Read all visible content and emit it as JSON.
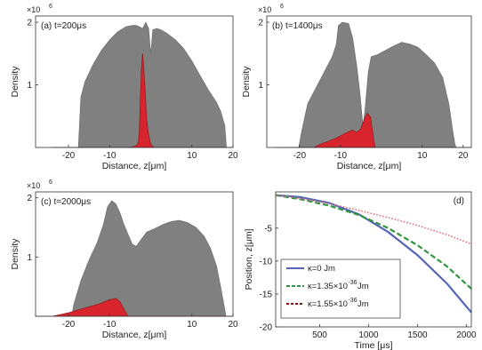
{
  "colors": {
    "gray": "#808080",
    "red": "#d8242c",
    "darkred": "#8c1014",
    "blue": "#5566b8",
    "green": "#2e9640",
    "pink": "#e06c74"
  },
  "chart_data": [
    {
      "type": "area",
      "panel_label": "(a) t=200μs",
      "xlabel": "Distance, z[μm]",
      "ylabel": "Density",
      "exponent": "×10",
      "exponent_power": "6",
      "xlim": [
        -28,
        20
      ],
      "ylim": [
        0,
        2.1
      ],
      "xticks": [
        -20,
        -10,
        10,
        20
      ],
      "yticks": [
        1,
        2
      ],
      "series": [
        {
          "kind": "total",
          "x": [
            -24,
            -17.6,
            -17,
            -16,
            -14,
            -12,
            -10,
            -8,
            -6,
            -4.5,
            -3.5,
            -2.5,
            -2,
            -1.2,
            -0.5,
            0,
            0.5,
            1.5,
            2.5,
            4,
            6,
            8,
            10,
            12,
            14,
            16,
            17,
            18,
            18.4,
            19,
            20
          ],
          "y": [
            0,
            0,
            0.8,
            1.05,
            1.33,
            1.55,
            1.72,
            1.85,
            1.93,
            1.95,
            1.95,
            1.92,
            1.9,
            2.0,
            1.9,
            1.5,
            1.88,
            1.9,
            1.88,
            1.82,
            1.72,
            1.58,
            1.38,
            1.15,
            0.92,
            0.72,
            0.58,
            0.35,
            0,
            0,
            0
          ]
        },
        {
          "kind": "component",
          "x": [
            -24,
            -5,
            -3.5,
            -3,
            -2.8,
            -2.5,
            -2.3,
            -2,
            -1.7,
            -1.5,
            -1.2,
            -1,
            -0.5,
            0,
            0.8,
            3,
            20
          ],
          "y": [
            0,
            0,
            0.03,
            0.08,
            0.25,
            0.8,
            1.25,
            1.5,
            1.3,
            1.05,
            0.75,
            0.45,
            0.2,
            0.05,
            0,
            0,
            0
          ]
        }
      ]
    },
    {
      "type": "area",
      "panel_label": "(b) t=1400μs",
      "xlabel": "Distance, z[μm]",
      "ylabel": "Density",
      "exponent": "×10",
      "exponent_power": "6",
      "xlim": [
        -28,
        22
      ],
      "ylim": [
        0,
        2.1
      ],
      "xticks": [
        -20,
        -10,
        10,
        20
      ],
      "yticks": [
        1,
        2
      ],
      "series": [
        {
          "kind": "total",
          "x": [
            -26,
            -20.2,
            -19.5,
            -18,
            -16,
            -14,
            -12,
            -11,
            -10.5,
            -9.5,
            -8,
            -7,
            -6,
            -5.2,
            -4.5,
            -4,
            -3.2,
            -2.5,
            -1,
            1,
            3,
            5,
            7,
            9,
            11,
            13,
            15,
            16.5,
            17.5,
            18,
            18.3,
            22
          ],
          "y": [
            0,
            0,
            0.25,
            0.7,
            0.95,
            1.2,
            1.45,
            1.65,
            1.95,
            2.0,
            1.98,
            1.75,
            1.3,
            0.85,
            0.35,
            0.6,
            1.2,
            1.45,
            1.48,
            1.55,
            1.62,
            1.68,
            1.65,
            1.6,
            1.48,
            1.35,
            1.12,
            0.7,
            0.25,
            0.05,
            0,
            0
          ]
        },
        {
          "kind": "component",
          "x": [
            -26,
            -16.5,
            -15,
            -13,
            -11,
            -9,
            -7,
            -6,
            -5,
            -4.2,
            -3.4,
            -2.6,
            -1.8,
            -1.5,
            22
          ],
          "y": [
            0,
            0,
            0.05,
            0.1,
            0.15,
            0.22,
            0.28,
            0.24,
            0.3,
            0.45,
            0.55,
            0.48,
            0.1,
            0,
            0
          ]
        }
      ]
    },
    {
      "type": "area",
      "panel_label": "(c) t=2000μs",
      "xlabel": "Distance, z[μm]",
      "ylabel": "Density",
      "exponent": "×10",
      "exponent_power": "6",
      "xlim": [
        -28,
        20
      ],
      "ylim": [
        0,
        2.1
      ],
      "xticks": [
        -20,
        -10,
        10,
        20
      ],
      "yticks": [
        1,
        2
      ],
      "series": [
        {
          "kind": "total",
          "x": [
            -24,
            -19.2,
            -18.7,
            -17,
            -15,
            -13,
            -11.5,
            -10.5,
            -9.5,
            -8.5,
            -7.5,
            -6.5,
            -5.5,
            -4.5,
            -3.5,
            -2.5,
            -1,
            1,
            3,
            5,
            7,
            9,
            11,
            13,
            14.5,
            16,
            17,
            17.8,
            18.3,
            20
          ],
          "y": [
            0,
            0,
            0.2,
            0.6,
            0.95,
            1.25,
            1.55,
            1.85,
            1.95,
            1.9,
            1.75,
            1.55,
            1.38,
            1.22,
            1.18,
            1.28,
            1.42,
            1.48,
            1.55,
            1.6,
            1.62,
            1.58,
            1.5,
            1.35,
            1.15,
            0.85,
            0.5,
            0.2,
            0,
            0
          ]
        },
        {
          "kind": "component",
          "x": [
            -28,
            -24,
            -22,
            -20,
            -18,
            -16,
            -14,
            -12,
            -10,
            -8.5,
            -7.5,
            -6.5,
            -5.5,
            20
          ],
          "y": [
            0,
            0,
            0.03,
            0.06,
            0.1,
            0.14,
            0.18,
            0.22,
            0.28,
            0.3,
            0.25,
            0.12,
            0,
            0
          ]
        }
      ]
    },
    {
      "type": "line",
      "panel_label": "(d)",
      "xlabel": "Time [μs]",
      "ylabel": "Position, z[μm]",
      "xlim": [
        50,
        2050
      ],
      "ylim": [
        -20,
        0.5
      ],
      "xticks": [
        500,
        1000,
        1500,
        2000
      ],
      "yticks": [
        -5,
        -10,
        -15,
        -20
      ],
      "legend": [
        {
          "kappa": "κ=0 Jm",
          "mantissa": "",
          "power": "",
          "unit": ""
        },
        {
          "kappa": "κ=1.35×10",
          "mantissa": "",
          "power": "-36",
          "unit": " Jm"
        },
        {
          "kappa": "κ=1.55×10",
          "mantissa": "",
          "power": "-36",
          "unit": " Jm"
        }
      ],
      "series": [
        {
          "style": "solid",
          "x": [
            50,
            300,
            600,
            900,
            1200,
            1500,
            1800,
            2050
          ],
          "y": [
            0,
            -0.3,
            -1.2,
            -2.9,
            -5.6,
            -9.1,
            -13.4,
            -17.8
          ]
        },
        {
          "style": "dashed",
          "x": [
            50,
            300,
            600,
            900,
            1200,
            1500,
            1800,
            2050
          ],
          "y": [
            0,
            -0.6,
            -1.6,
            -3.0,
            -5.0,
            -7.6,
            -10.8,
            -14.2
          ]
        },
        {
          "style": "dotted",
          "x": [
            50,
            300,
            600,
            900,
            1200,
            1500,
            1800,
            2050
          ],
          "y": [
            0,
            -0.5,
            -1.3,
            -2.3,
            -3.4,
            -4.6,
            -6.0,
            -7.4
          ]
        }
      ]
    }
  ]
}
